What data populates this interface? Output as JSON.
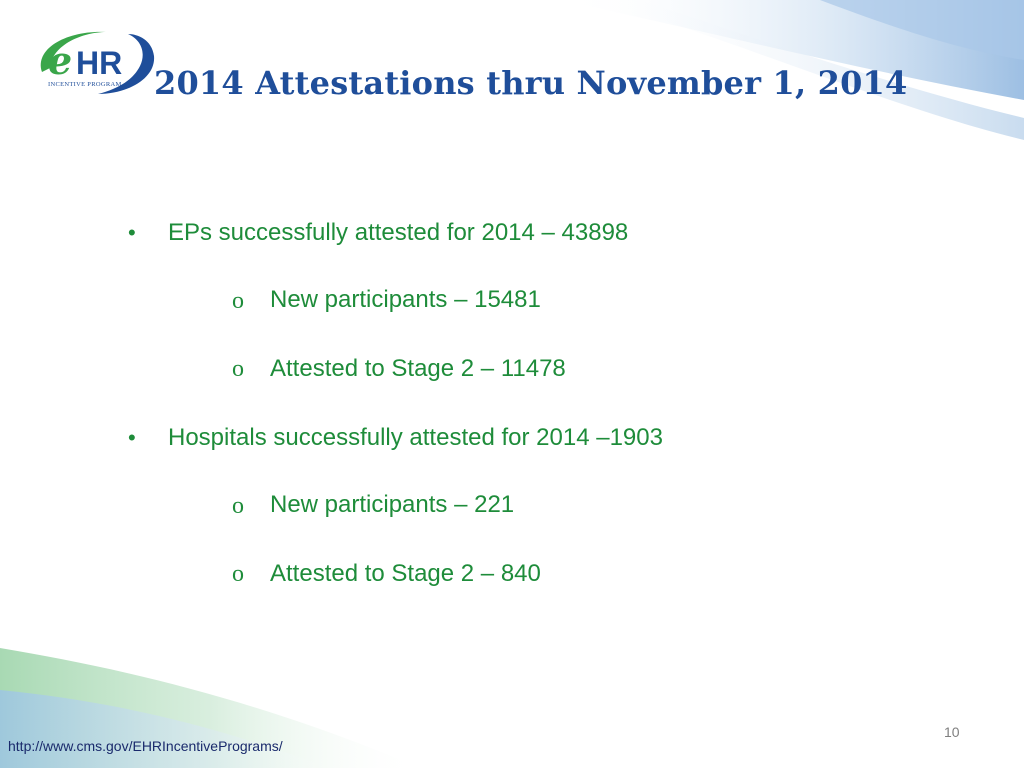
{
  "slide": {
    "title": "2014 Attestations thru November 1, 2014",
    "logo": {
      "letters": "eHR",
      "tagline": "INCENTIVE PROGRAM"
    },
    "bullets": [
      {
        "marker": "•",
        "text": "EPs successfully attested for 2014 – 43898",
        "sub_items": [
          {
            "marker": "o",
            "text": "New participants – 15481"
          },
          {
            "marker": "o",
            "text": "Attested to Stage 2 – 11478"
          }
        ]
      },
      {
        "marker": "•",
        "text": "Hospitals successfully attested for 2014 –1903",
        "sub_items": [
          {
            "marker": "o",
            "text": "New participants – 221"
          },
          {
            "marker": "o",
            "text": "Attested to Stage 2 – 840"
          }
        ]
      }
    ],
    "footer_url": "http://www.cms.gov/EHRIncentivePrograms/",
    "page_number": "10"
  },
  "colors": {
    "title": "#1f4e9a",
    "bullet_text": "#1e8c3a",
    "logo_green": "#3aa64a",
    "logo_blue": "#1f4e9a",
    "swoosh_blue": "#b9d3ec",
    "swoosh_green": "#bfe3c6"
  }
}
